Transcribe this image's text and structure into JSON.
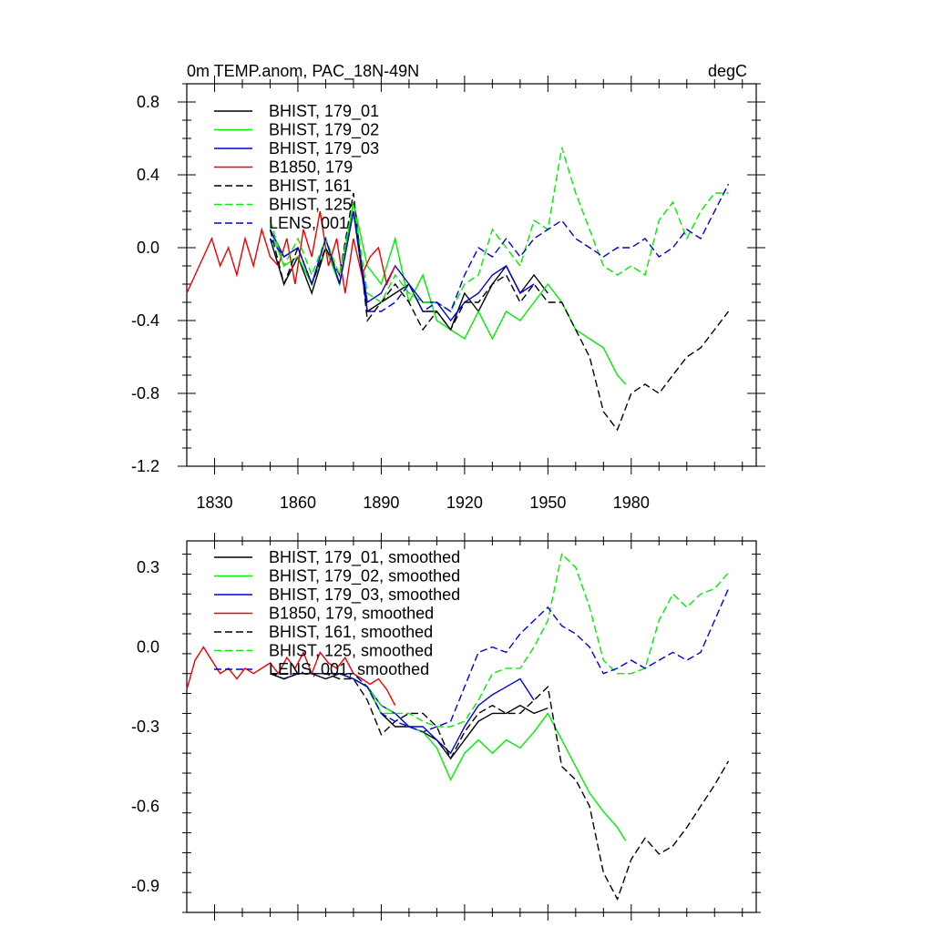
{
  "header": {
    "title": "0m TEMP.anom, PAC_18N-49N",
    "units": "degC"
  },
  "chart_data": [
    {
      "type": "line",
      "xlim": [
        1820,
        2025
      ],
      "ylim": [
        -1.2,
        0.9
      ],
      "x_ticks": [
        1830,
        1860,
        1890,
        1920,
        1950,
        1980
      ],
      "x_tick_labels": [
        "1830",
        "1860",
        "1890",
        "1920",
        "1950",
        "1980"
      ],
      "y_ticks": [
        0.8,
        0.4,
        0.0,
        -0.4,
        -0.8,
        -1.2
      ],
      "y_tick_labels": [
        "0.8",
        "0.4",
        "0.0",
        "-0.4",
        "-0.8",
        "-1.2"
      ],
      "legend_position": "top-left",
      "series": [
        {
          "name": "BHIST, 179_01",
          "color": "#000000",
          "dash": false,
          "x": [
            1850,
            1855,
            1860,
            1865,
            1870,
            1875,
            1880,
            1885,
            1890,
            1895,
            1900,
            1905,
            1910,
            1915,
            1920,
            1925,
            1930,
            1935,
            1940,
            1945,
            1950
          ],
          "y": [
            0.05,
            -0.2,
            -0.05,
            -0.25,
            0.0,
            -0.2,
            0.2,
            -0.35,
            -0.3,
            -0.25,
            -0.2,
            -0.35,
            -0.35,
            -0.45,
            -0.25,
            -0.35,
            -0.2,
            -0.1,
            -0.25,
            -0.15,
            -0.25
          ]
        },
        {
          "name": "BHIST, 179_02",
          "color": "#00ee00",
          "dash": false,
          "x": [
            1850,
            1855,
            1860,
            1865,
            1870,
            1875,
            1880,
            1885,
            1890,
            1895,
            1900,
            1905,
            1910,
            1915,
            1920,
            1925,
            1930,
            1935,
            1940,
            1945,
            1950,
            1955,
            1960,
            1965,
            1970,
            1975,
            1978
          ],
          "y": [
            0.1,
            -0.1,
            -0.05,
            -0.2,
            0.0,
            -0.2,
            0.25,
            -0.1,
            -0.2,
            0.05,
            -0.3,
            -0.15,
            -0.4,
            -0.45,
            -0.5,
            -0.35,
            -0.5,
            -0.35,
            -0.4,
            -0.3,
            -0.2,
            -0.3,
            -0.45,
            -0.5,
            -0.55,
            -0.7,
            -0.75
          ]
        },
        {
          "name": "BHIST, 179_03",
          "color": "#0000dd",
          "dash": false,
          "x": [
            1850,
            1855,
            1860,
            1865,
            1870,
            1875,
            1880,
            1885,
            1890,
            1895,
            1900,
            1905,
            1910,
            1915,
            1920,
            1925,
            1930,
            1935,
            1940,
            1945
          ],
          "y": [
            0.1,
            -0.05,
            0.0,
            -0.2,
            0.05,
            -0.2,
            0.2,
            -0.3,
            -0.25,
            -0.1,
            -0.2,
            -0.3,
            -0.3,
            -0.4,
            -0.3,
            -0.25,
            -0.15,
            -0.1,
            -0.25,
            -0.2
          ]
        },
        {
          "name": "B1850, 179",
          "color": "#ee0000",
          "dash": false,
          "x": [
            1820,
            1823,
            1826,
            1829,
            1832,
            1835,
            1838,
            1841,
            1844,
            1847,
            1850,
            1853,
            1856,
            1859,
            1862,
            1865,
            1868,
            1871,
            1874,
            1877,
            1880,
            1883,
            1886,
            1889,
            1892,
            1895
          ],
          "y": [
            -0.25,
            -0.15,
            -0.05,
            0.05,
            -0.1,
            0.0,
            -0.15,
            0.05,
            -0.1,
            0.1,
            -0.05,
            -0.1,
            0.05,
            -0.2,
            0.1,
            -0.05,
            0.2,
            -0.1,
            0.05,
            -0.25,
            0.05,
            -0.15,
            -0.05,
            0.0,
            -0.2,
            -0.1
          ]
        },
        {
          "name": "BHIST, 161",
          "color": "#000000",
          "dash": true,
          "x": [
            1850,
            1855,
            1860,
            1865,
            1870,
            1875,
            1880,
            1885,
            1890,
            1895,
            1900,
            1905,
            1910,
            1915,
            1920,
            1925,
            1930,
            1935,
            1940,
            1945,
            1950,
            1955,
            1960,
            1965,
            1970,
            1975,
            1980,
            1985,
            1990,
            1995,
            2000,
            2005,
            2010,
            2015
          ],
          "y": [
            0.1,
            -0.2,
            0.0,
            -0.2,
            0.0,
            -0.15,
            0.3,
            -0.4,
            -0.3,
            -0.2,
            -0.3,
            -0.45,
            -0.35,
            -0.45,
            -0.3,
            -0.3,
            -0.2,
            -0.15,
            -0.3,
            -0.2,
            -0.3,
            -0.3,
            -0.45,
            -0.6,
            -0.9,
            -1.0,
            -0.8,
            -0.75,
            -0.8,
            -0.7,
            -0.6,
            -0.55,
            -0.45,
            -0.35
          ]
        },
        {
          "name": "BHIST, 125",
          "color": "#00ee00",
          "dash": true,
          "x": [
            1850,
            1855,
            1860,
            1865,
            1870,
            1875,
            1880,
            1885,
            1890,
            1895,
            1900,
            1905,
            1910,
            1915,
            1920,
            1925,
            1930,
            1935,
            1940,
            1945,
            1950,
            1955,
            1960,
            1965,
            1970,
            1975,
            1980,
            1985,
            1990,
            1995,
            2000,
            2005,
            2010,
            2015
          ],
          "y": [
            0.15,
            -0.1,
            0.05,
            -0.15,
            0.05,
            -0.15,
            0.25,
            -0.25,
            -0.3,
            -0.15,
            -0.25,
            -0.3,
            -0.3,
            -0.35,
            -0.2,
            -0.15,
            0.1,
            0.0,
            -0.1,
            0.15,
            0.1,
            0.55,
            0.3,
            0.1,
            -0.1,
            -0.15,
            -0.1,
            -0.15,
            0.15,
            0.25,
            0.05,
            0.2,
            0.3,
            0.3
          ]
        },
        {
          "name": "LENS, 001",
          "color": "#0000dd",
          "dash": true,
          "x": [
            1850,
            1855,
            1860,
            1865,
            1870,
            1875,
            1880,
            1885,
            1890,
            1895,
            1900,
            1905,
            1910,
            1915,
            1920,
            1925,
            1930,
            1935,
            1940,
            1945,
            1950,
            1955,
            1960,
            1965,
            1970,
            1975,
            1980,
            1985,
            1990,
            1995,
            2000,
            2005,
            2010,
            2015
          ],
          "y": [
            0.05,
            -0.05,
            0.0,
            -0.2,
            0.05,
            -0.2,
            0.2,
            -0.35,
            -0.35,
            -0.3,
            -0.2,
            -0.35,
            -0.3,
            -0.35,
            -0.15,
            0.0,
            -0.05,
            0.05,
            -0.05,
            0.05,
            0.1,
            0.15,
            0.05,
            0.0,
            -0.05,
            0.0,
            0.0,
            0.05,
            -0.05,
            0.0,
            0.1,
            0.05,
            0.2,
            0.35
          ]
        }
      ]
    },
    {
      "type": "line",
      "xlim": [
        1820,
        2025
      ],
      "ylim": [
        -1.0,
        0.4
      ],
      "x_ticks": [
        1830,
        1860,
        1890,
        1920,
        1950,
        1980
      ],
      "y_ticks": [
        0.3,
        0.0,
        -0.3,
        -0.6,
        -0.9
      ],
      "y_tick_labels": [
        "0.3",
        "0.0",
        "-0.3",
        "-0.6",
        "-0.9"
      ],
      "legend_position": "top-left",
      "series": [
        {
          "name": "BHIST, 179_01, smoothed",
          "color": "#000000",
          "dash": false,
          "x": [
            1850,
            1855,
            1860,
            1865,
            1870,
            1875,
            1880,
            1885,
            1890,
            1895,
            1900,
            1905,
            1910,
            1915,
            1920,
            1925,
            1930,
            1935,
            1940,
            1945,
            1950
          ],
          "y": [
            -0.1,
            -0.12,
            -0.1,
            -0.1,
            -0.12,
            -0.1,
            -0.12,
            -0.15,
            -0.25,
            -0.3,
            -0.3,
            -0.32,
            -0.35,
            -0.42,
            -0.35,
            -0.28,
            -0.25,
            -0.25,
            -0.22,
            -0.25,
            -0.23
          ]
        },
        {
          "name": "BHIST, 179_02, smoothed",
          "color": "#00ee00",
          "dash": false,
          "x": [
            1850,
            1855,
            1860,
            1865,
            1870,
            1875,
            1880,
            1885,
            1890,
            1895,
            1900,
            1905,
            1910,
            1915,
            1920,
            1925,
            1930,
            1935,
            1940,
            1945,
            1950,
            1955,
            1960,
            1965,
            1970,
            1975,
            1978
          ],
          "y": [
            -0.1,
            -0.12,
            -0.1,
            -0.1,
            -0.1,
            -0.1,
            -0.12,
            -0.15,
            -0.25,
            -0.25,
            -0.3,
            -0.32,
            -0.38,
            -0.5,
            -0.4,
            -0.35,
            -0.4,
            -0.35,
            -0.38,
            -0.32,
            -0.25,
            -0.35,
            -0.45,
            -0.55,
            -0.62,
            -0.68,
            -0.73
          ]
        },
        {
          "name": "BHIST, 179_03, smoothed",
          "color": "#0000dd",
          "dash": false,
          "x": [
            1850,
            1855,
            1860,
            1865,
            1870,
            1875,
            1880,
            1885,
            1890,
            1895,
            1900,
            1905,
            1910,
            1915,
            1920,
            1925,
            1930,
            1935,
            1940,
            1945
          ],
          "y": [
            -0.1,
            -0.12,
            -0.1,
            -0.1,
            -0.1,
            -0.1,
            -0.12,
            -0.15,
            -0.22,
            -0.25,
            -0.3,
            -0.3,
            -0.35,
            -0.4,
            -0.3,
            -0.22,
            -0.18,
            -0.15,
            -0.12,
            -0.2
          ]
        },
        {
          "name": "B1850, 179, smoothed",
          "color": "#ee0000",
          "dash": false,
          "x": [
            1820,
            1823,
            1826,
            1829,
            1832,
            1835,
            1838,
            1841,
            1844,
            1847,
            1850,
            1853,
            1856,
            1859,
            1862,
            1865,
            1868,
            1871,
            1874,
            1877,
            1880,
            1883,
            1886,
            1889,
            1892,
            1895
          ],
          "y": [
            -0.16,
            -0.05,
            0.0,
            -0.05,
            -0.1,
            -0.08,
            -0.12,
            -0.08,
            -0.1,
            -0.08,
            -0.06,
            -0.1,
            -0.04,
            -0.08,
            -0.02,
            -0.1,
            -0.02,
            -0.06,
            -0.08,
            -0.04,
            -0.1,
            -0.12,
            -0.14,
            -0.12,
            -0.16,
            -0.22
          ]
        },
        {
          "name": "BHIST, 161, smoothed",
          "color": "#000000",
          "dash": true,
          "x": [
            1850,
            1855,
            1860,
            1865,
            1870,
            1875,
            1880,
            1885,
            1890,
            1895,
            1900,
            1905,
            1910,
            1915,
            1920,
            1925,
            1930,
            1935,
            1940,
            1945,
            1950,
            1955,
            1960,
            1965,
            1970,
            1975,
            1980,
            1985,
            1990,
            1995,
            2000,
            2005,
            2010,
            2015
          ],
          "y": [
            -0.1,
            -0.12,
            -0.1,
            -0.1,
            -0.1,
            -0.12,
            -0.12,
            -0.2,
            -0.33,
            -0.28,
            -0.25,
            -0.25,
            -0.3,
            -0.42,
            -0.32,
            -0.25,
            -0.22,
            -0.25,
            -0.25,
            -0.2,
            -0.15,
            -0.45,
            -0.5,
            -0.6,
            -0.85,
            -0.95,
            -0.8,
            -0.72,
            -0.78,
            -0.75,
            -0.68,
            -0.6,
            -0.52,
            -0.43
          ]
        },
        {
          "name": "BHIST, 125, smoothed",
          "color": "#00ee00",
          "dash": true,
          "x": [
            1850,
            1855,
            1860,
            1865,
            1870,
            1875,
            1880,
            1885,
            1890,
            1895,
            1900,
            1905,
            1910,
            1915,
            1920,
            1925,
            1930,
            1935,
            1940,
            1945,
            1950,
            1955,
            1960,
            1965,
            1970,
            1975,
            1980,
            1985,
            1990,
            1995,
            2000,
            2005,
            2010,
            2015
          ],
          "y": [
            -0.1,
            -0.1,
            -0.1,
            -0.1,
            -0.1,
            -0.1,
            -0.1,
            -0.15,
            -0.22,
            -0.25,
            -0.25,
            -0.28,
            -0.3,
            -0.3,
            -0.28,
            -0.2,
            -0.1,
            -0.08,
            -0.08,
            0.0,
            0.1,
            0.35,
            0.3,
            0.15,
            -0.05,
            -0.1,
            -0.1,
            -0.08,
            0.1,
            0.2,
            0.15,
            0.2,
            0.22,
            0.28
          ]
        },
        {
          "name": "LENS, 001, smoothed",
          "color": "#0000dd",
          "dash": true,
          "x": [
            1850,
            1855,
            1860,
            1865,
            1870,
            1875,
            1880,
            1885,
            1890,
            1895,
            1900,
            1905,
            1910,
            1915,
            1920,
            1925,
            1930,
            1935,
            1940,
            1945,
            1950,
            1955,
            1960,
            1965,
            1970,
            1975,
            1980,
            1985,
            1990,
            1995,
            2000,
            2005,
            2010,
            2015
          ],
          "y": [
            -0.1,
            -0.1,
            -0.1,
            -0.1,
            -0.1,
            -0.1,
            -0.1,
            -0.15,
            -0.25,
            -0.28,
            -0.3,
            -0.32,
            -0.3,
            -0.28,
            -0.15,
            -0.02,
            0.0,
            -0.02,
            0.05,
            0.1,
            0.15,
            0.08,
            0.05,
            0.0,
            -0.1,
            -0.08,
            -0.05,
            -0.08,
            -0.05,
            -0.02,
            -0.05,
            -0.02,
            0.1,
            0.22
          ]
        }
      ]
    }
  ]
}
